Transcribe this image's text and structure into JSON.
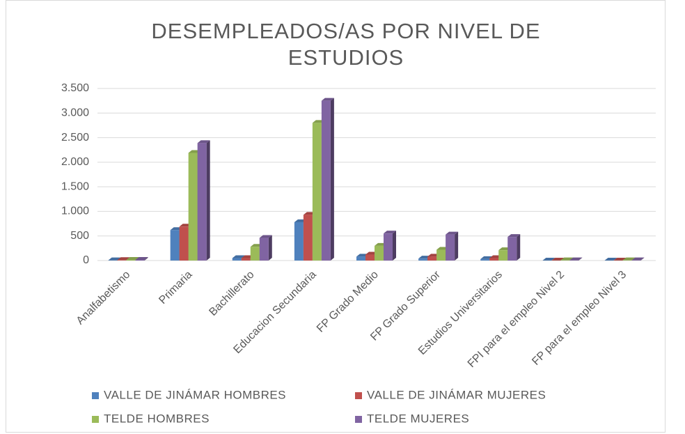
{
  "chart_data": {
    "type": "bar3d",
    "title": "DESEMPLEADOS/AS POR NIVEL DE ESTUDIOS",
    "categories": [
      "Analfabetismo",
      "Primaria",
      "Bachillerato",
      "Educacion Secundaria",
      "FP  Grado Medio",
      "FP Grado Superior",
      "Estudios Universitarios",
      "FPI para el empleo Nivel 2",
      "FP para el empleo Nivel 3"
    ],
    "series": [
      {
        "name": "VALLE DE JINÁMAR HOMBRES",
        "color": "#4f81bd",
        "values": [
          5,
          620,
          50,
          780,
          80,
          40,
          30,
          0,
          0
        ]
      },
      {
        "name": "VALLE DE JINÁMAR MUJERES",
        "color": "#c0504d",
        "values": [
          10,
          690,
          50,
          930,
          120,
          80,
          50,
          0,
          0
        ]
      },
      {
        "name": "TELDE HOMBRES",
        "color": "#9bbb59",
        "values": [
          15,
          2190,
          280,
          2800,
          300,
          220,
          210,
          5,
          5
        ]
      },
      {
        "name": "TELDE MUJERES",
        "color": "#8064a2",
        "values": [
          15,
          2390,
          460,
          3250,
          550,
          530,
          480,
          5,
          5
        ]
      }
    ],
    "ylim": [
      0,
      3500
    ],
    "yticks": [
      0,
      {
        "value": 500,
        "label": "500"
      },
      {
        "value": 1000,
        "label": "1.000"
      },
      {
        "value": 1500,
        "label": "1.500"
      },
      {
        "value": 2000,
        "label": "2.000"
      },
      {
        "value": 2500,
        "label": "2.500"
      },
      {
        "value": 3000,
        "label": "3.000"
      },
      {
        "value": 3500,
        "label": "3.500"
      }
    ],
    "grid": true,
    "legend": "bottom"
  }
}
